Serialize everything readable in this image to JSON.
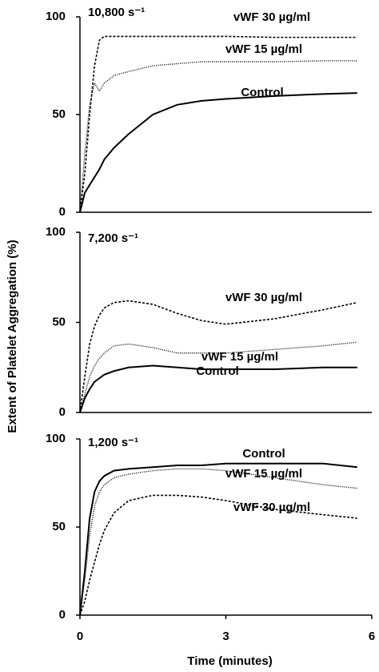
{
  "ylabel": "Extent of Platelet Aggregation (%)",
  "chart_data": [
    {
      "type": "line",
      "annotation": "10,800 s⁻¹",
      "x": [
        0,
        0.1,
        0.2,
        0.3,
        0.4,
        0.5,
        0.7,
        1,
        1.5,
        2,
        2.5,
        3,
        4,
        5,
        5.7
      ],
      "xlim": [
        0,
        6
      ],
      "ylim": [
        0,
        100
      ],
      "yticks": [
        0,
        50,
        100
      ],
      "series": [
        {
          "name": "vWF 30 µg/ml",
          "color": "#000000",
          "dash": "dashed",
          "values": [
            0,
            20,
            50,
            75,
            88,
            90,
            90,
            90,
            90,
            90,
            90,
            90,
            89.5,
            89.5,
            89.5
          ]
        },
        {
          "name": "vWF 15 µg/ml",
          "color": "#000000",
          "dash": "dotted",
          "values": [
            0,
            30,
            55,
            66,
            62,
            66,
            70,
            72,
            75,
            76,
            77,
            77,
            77,
            77.5,
            77.5
          ]
        },
        {
          "name": "Control",
          "color": "#000000",
          "dash": "solid",
          "values": [
            0,
            10,
            14,
            18,
            22,
            27,
            33,
            40,
            50,
            55,
            57,
            58,
            59.5,
            60.5,
            61
          ]
        }
      ]
    },
    {
      "type": "line",
      "annotation": "7,200 s⁻¹",
      "x": [
        0,
        0.1,
        0.2,
        0.3,
        0.4,
        0.5,
        0.7,
        1,
        1.5,
        2,
        2.5,
        3,
        4,
        5,
        5.7
      ],
      "xlim": [
        0,
        6
      ],
      "ylim": [
        0,
        100
      ],
      "yticks": [
        0,
        50,
        100
      ],
      "series": [
        {
          "name": "vWF 30 µg/ml",
          "color": "#000000",
          "dash": "dashed",
          "values": [
            0,
            20,
            38,
            48,
            54,
            58,
            61,
            62,
            60,
            55,
            51,
            49,
            52,
            57,
            61
          ]
        },
        {
          "name": "vWF 15 µg/ml",
          "color": "#000000",
          "dash": "dotted",
          "values": [
            0,
            10,
            20,
            26,
            30,
            33,
            37,
            38,
            36,
            33,
            33,
            33,
            35,
            37,
            39
          ]
        },
        {
          "name": "Control",
          "color": "#000000",
          "dash": "solid",
          "values": [
            0,
            8,
            13,
            17,
            19,
            21,
            23,
            25,
            26,
            25,
            24,
            24,
            24,
            25,
            25
          ]
        }
      ]
    },
    {
      "type": "line",
      "annotation": "1,200 s⁻¹",
      "x": [
        0,
        0.1,
        0.2,
        0.3,
        0.4,
        0.5,
        0.7,
        1,
        1.5,
        2,
        2.5,
        3,
        4,
        5,
        5.7
      ],
      "xlim": [
        0,
        6
      ],
      "xticks": [
        0,
        3,
        6
      ],
      "xlabel": "Time (minutes)",
      "ylim": [
        0,
        100
      ],
      "yticks": [
        0,
        50,
        100
      ],
      "series": [
        {
          "name": "Control",
          "color": "#000000",
          "dash": "solid",
          "values": [
            0,
            25,
            55,
            70,
            76,
            79,
            82,
            83,
            84,
            85,
            85,
            86,
            86,
            86,
            84
          ]
        },
        {
          "name": "vWF 15 µg/ml",
          "color": "#000000",
          "dash": "dotted",
          "values": [
            0,
            20,
            45,
            62,
            70,
            74,
            78,
            80,
            82,
            83,
            83,
            82,
            78,
            74,
            72
          ]
        },
        {
          "name": "vWF 30 µg/ml",
          "color": "#000000",
          "dash": "dashed",
          "values": [
            0,
            8,
            20,
            30,
            40,
            48,
            58,
            65,
            68,
            68,
            67,
            65,
            60,
            57,
            55
          ]
        }
      ]
    }
  ]
}
